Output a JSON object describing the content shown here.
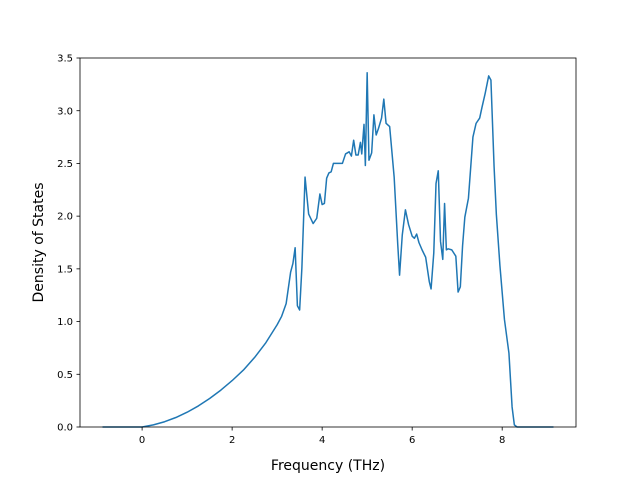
{
  "chart_data": {
    "type": "line",
    "title": "",
    "xlabel": "Frequency (THz)",
    "ylabel": "Density of States",
    "xlim": [
      -1.38,
      9.64
    ],
    "ylim": [
      0,
      3.5
    ],
    "xticks": [
      0,
      2,
      4,
      6,
      8
    ],
    "yticks": [
      0.0,
      0.5,
      1.0,
      1.5,
      2.0,
      2.5,
      3.0,
      3.5
    ],
    "xtick_labels": [
      "0",
      "2",
      "4",
      "6",
      "8"
    ],
    "ytick_labels": [
      "0.0",
      "0.5",
      "1.0",
      "1.5",
      "2.0",
      "2.5",
      "3.0",
      "3.5"
    ],
    "grid": false,
    "legend": "none",
    "series": [
      {
        "color": "#1f77b4",
        "x": [
          -0.88,
          0.0,
          0.25,
          0.5,
          0.75,
          1.0,
          1.25,
          1.5,
          1.75,
          2.0,
          2.25,
          2.5,
          2.75,
          3.0,
          3.1,
          3.2,
          3.3,
          3.35,
          3.4,
          3.45,
          3.5,
          3.55,
          3.62,
          3.7,
          3.8,
          3.88,
          3.95,
          4.0,
          4.05,
          4.1,
          4.15,
          4.2,
          4.25,
          4.35,
          4.45,
          4.52,
          4.6,
          4.65,
          4.7,
          4.75,
          4.8,
          4.85,
          4.88,
          4.93,
          4.96,
          5.0,
          5.04,
          5.1,
          5.15,
          5.2,
          5.25,
          5.32,
          5.37,
          5.42,
          5.5,
          5.6,
          5.68,
          5.72,
          5.78,
          5.85,
          5.92,
          6.0,
          6.05,
          6.1,
          6.15,
          6.22,
          6.3,
          6.38,
          6.42,
          6.48,
          6.53,
          6.58,
          6.63,
          6.68,
          6.72,
          6.76,
          6.8,
          6.88,
          6.97,
          7.02,
          7.07,
          7.12,
          7.17,
          7.25,
          7.3,
          7.35,
          7.42,
          7.5,
          7.55,
          7.62,
          7.7,
          7.75,
          7.82,
          7.87,
          7.95,
          8.05,
          8.15,
          8.22,
          8.27,
          8.33,
          8.45,
          9.14
        ],
        "y": [
          0.0,
          0.0,
          0.02,
          0.05,
          0.09,
          0.14,
          0.2,
          0.27,
          0.35,
          0.44,
          0.54,
          0.66,
          0.8,
          0.97,
          1.05,
          1.17,
          1.47,
          1.55,
          1.7,
          1.15,
          1.11,
          1.51,
          2.37,
          2.02,
          1.93,
          1.98,
          2.21,
          2.11,
          2.12,
          2.36,
          2.41,
          2.42,
          2.5,
          2.5,
          2.5,
          2.59,
          2.61,
          2.57,
          2.72,
          2.58,
          2.58,
          2.7,
          2.59,
          2.87,
          2.48,
          3.36,
          2.53,
          2.6,
          2.96,
          2.77,
          2.83,
          2.93,
          3.11,
          2.88,
          2.85,
          2.37,
          1.73,
          1.44,
          1.82,
          2.06,
          1.92,
          1.81,
          1.79,
          1.83,
          1.75,
          1.68,
          1.61,
          1.38,
          1.31,
          1.65,
          2.31,
          2.43,
          1.76,
          1.59,
          2.12,
          1.68,
          1.69,
          1.68,
          1.62,
          1.28,
          1.33,
          1.72,
          1.99,
          2.17,
          2.46,
          2.75,
          2.88,
          2.93,
          3.03,
          3.16,
          3.33,
          3.29,
          2.47,
          2.02,
          1.53,
          1.02,
          0.7,
          0.19,
          0.02,
          0.0,
          0.0,
          0.0
        ]
      }
    ]
  }
}
